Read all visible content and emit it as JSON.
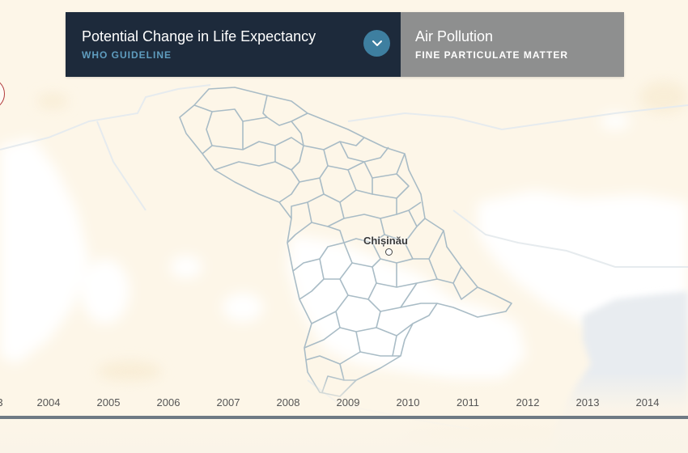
{
  "header": {
    "metric": {
      "title": "Potential Change in Life Expectancy",
      "subtitle": "WHO GUIDELINE",
      "dropdown_icon": "chevron-down-icon"
    },
    "layer": {
      "title": "Air Pollution",
      "subtitle": "FINE PARTICULATE MATTER"
    }
  },
  "map": {
    "city": "Chișinău",
    "colors": {
      "background": "#fdf6e8",
      "clear": "#ffffff",
      "sea": "#e8ecf0",
      "border": "#a9bcc6",
      "header_dark": "#1d2a3b",
      "header_gray": "#8e8f8f",
      "accent": "#3e7fa0"
    }
  },
  "timeline": {
    "years": [
      "3",
      "2004",
      "2005",
      "2006",
      "2007",
      "2008",
      "2009",
      "2010",
      "2011",
      "2012",
      "2013",
      "2014"
    ]
  }
}
